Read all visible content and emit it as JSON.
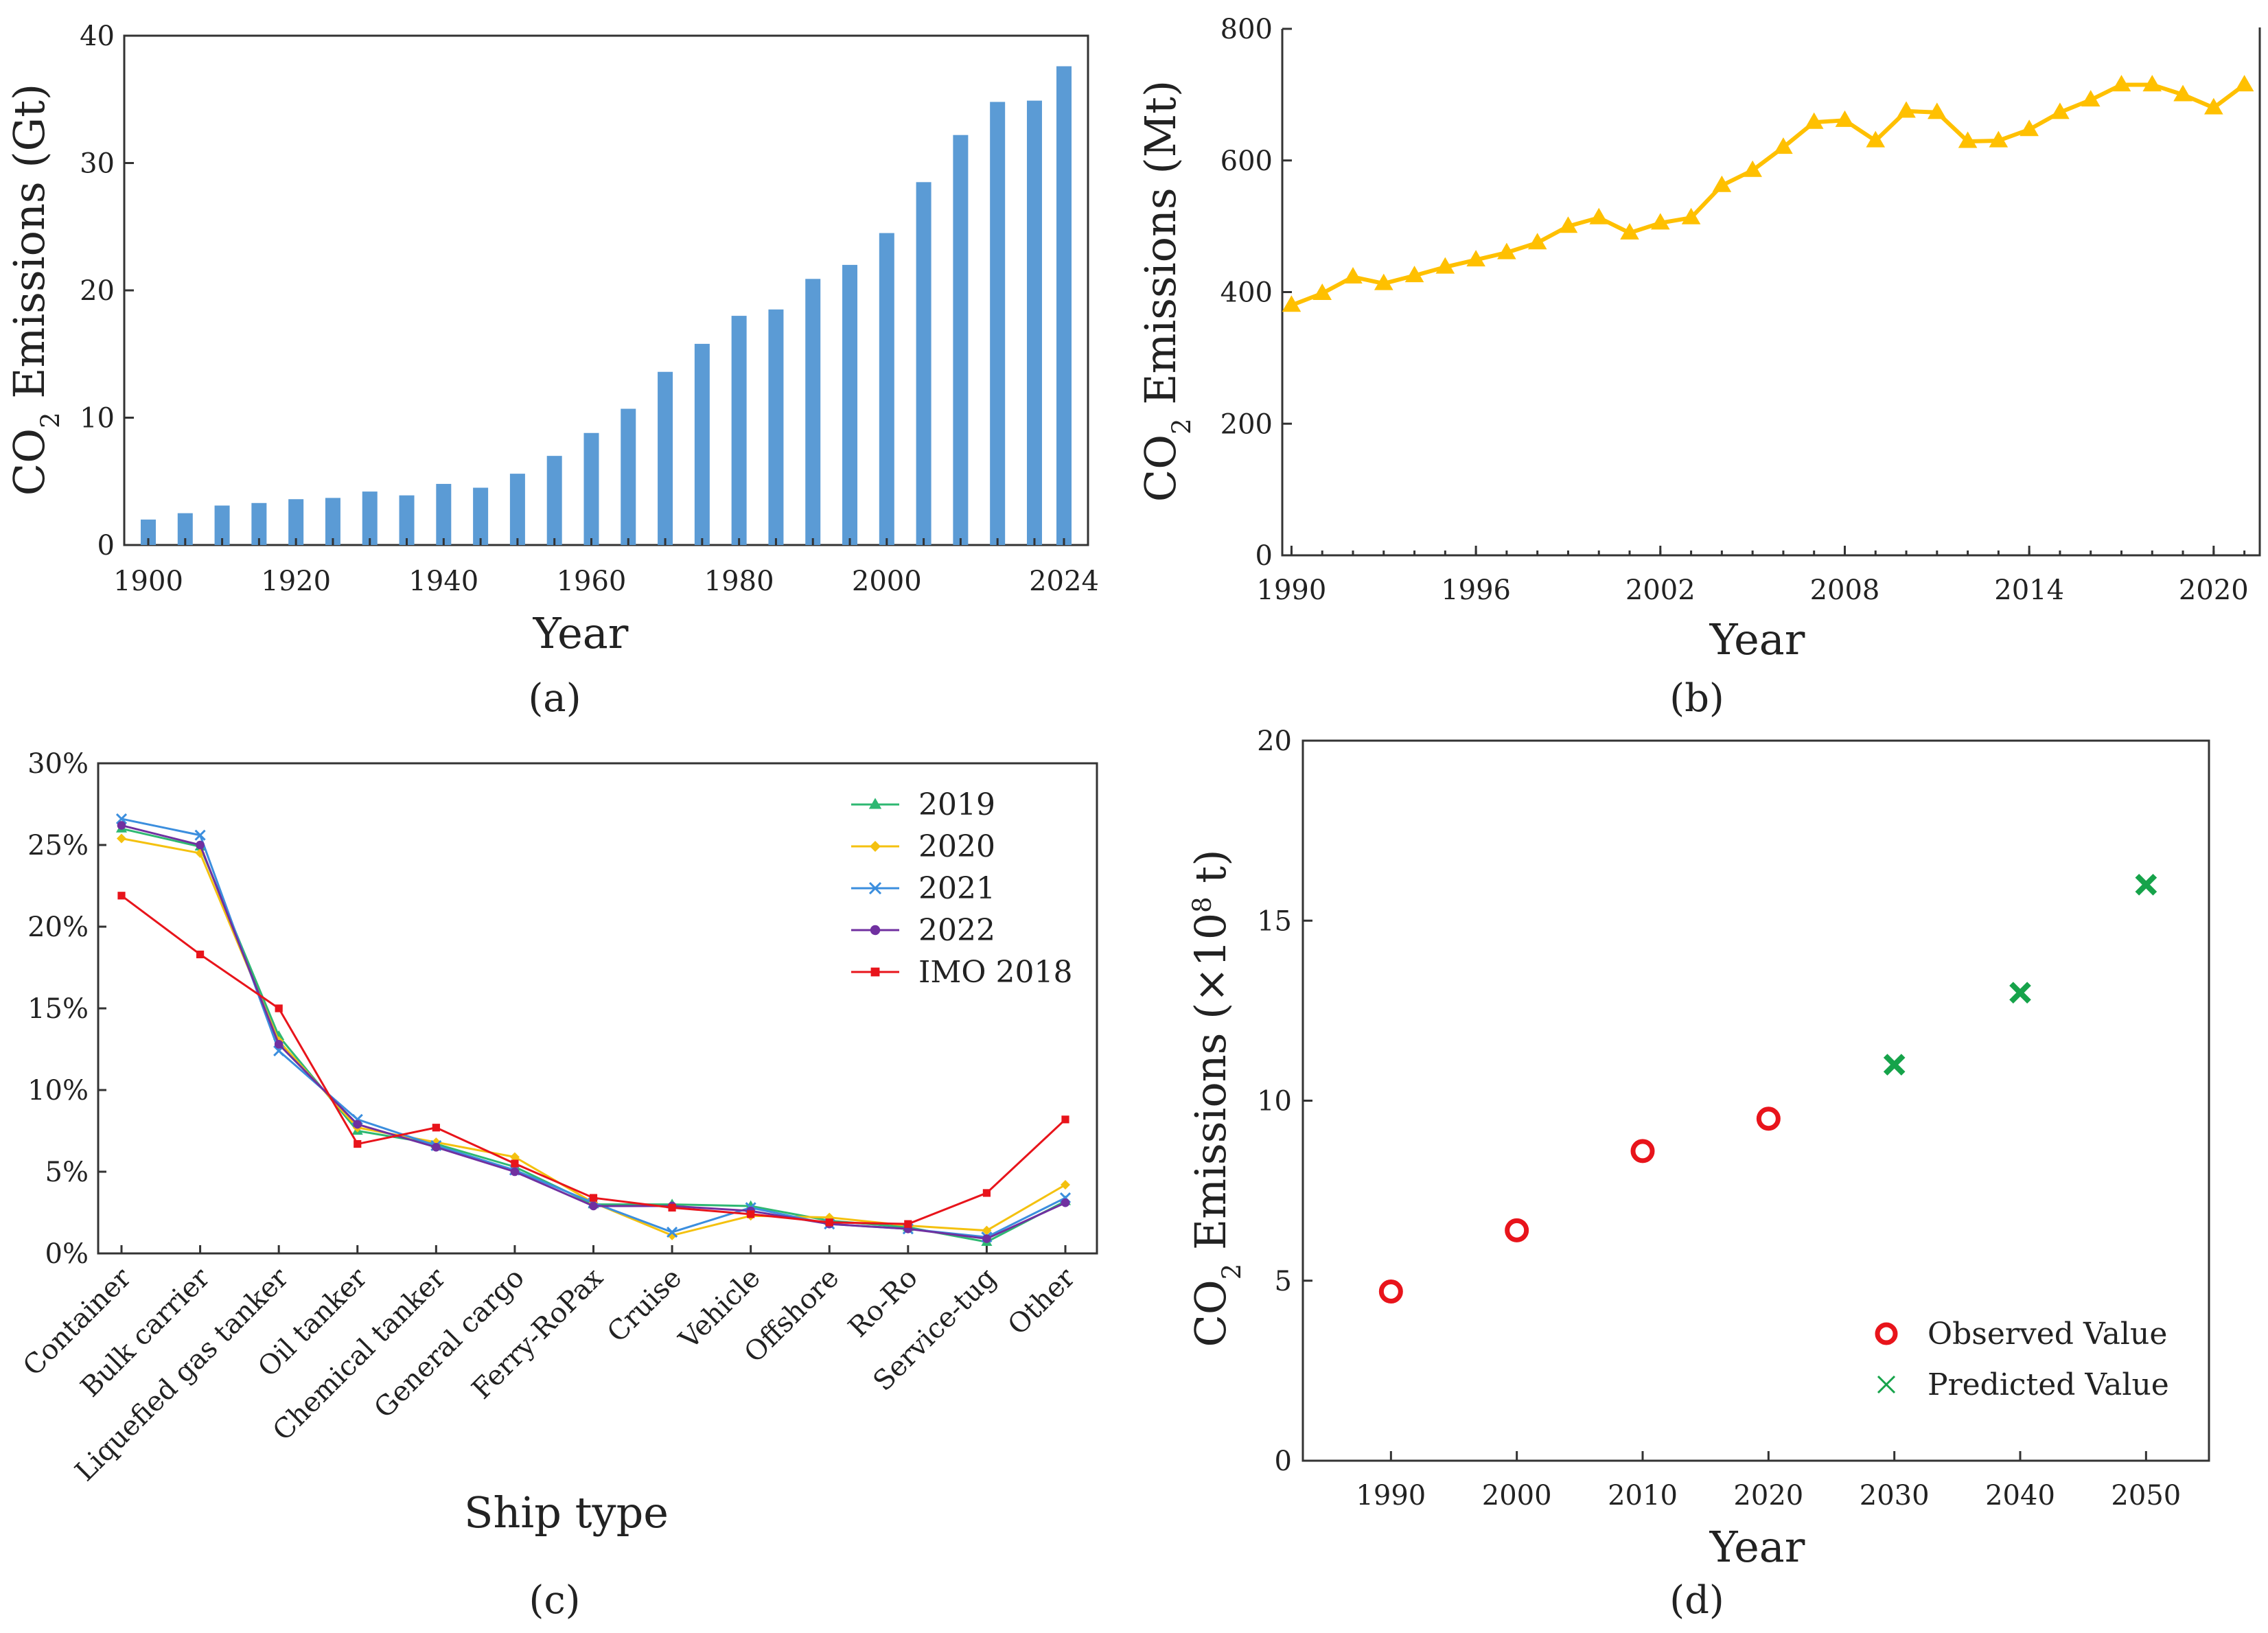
{
  "chart_data": [
    {
      "type": "bar",
      "panel_label": "a",
      "title": "",
      "xlabel": "Year",
      "ylabel": "CO2 Emissions (Gt)",
      "ylabel_parts": {
        "pre": "CO",
        "sub": "2",
        "post": " Emissions (Gt)"
      },
      "ylim": [
        0,
        40
      ],
      "yticks": [
        0,
        10,
        20,
        30,
        40
      ],
      "xtick_labels": [
        "1900",
        "1920",
        "1940",
        "1960",
        "1980",
        "2000",
        "2024"
      ],
      "categories": [
        "1900",
        "1905",
        "1910",
        "1915",
        "1920",
        "1925",
        "1930",
        "1935",
        "1940",
        "1945",
        "1950",
        "1955",
        "1960",
        "1965",
        "1970",
        "1975",
        "1980",
        "1985",
        "1990",
        "1995",
        "2000",
        "2005",
        "2010",
        "2015",
        "2020",
        "2024"
      ],
      "values": [
        2.0,
        2.5,
        3.1,
        3.3,
        3.6,
        3.7,
        4.2,
        3.9,
        4.8,
        4.5,
        5.6,
        7.0,
        8.8,
        10.7,
        13.6,
        15.8,
        18.0,
        18.5,
        20.9,
        22.0,
        24.5,
        28.5,
        32.2,
        34.8,
        34.9,
        37.6
      ],
      "color": "#5b9bd5"
    },
    {
      "type": "line",
      "panel_label": "b",
      "title": "",
      "xlabel": "Year",
      "ylabel": "CO2 Emissions (Mt)",
      "ylabel_parts": {
        "pre": "CO",
        "sub": "2",
        "post": " Emissions (Mt)"
      },
      "xlim": [
        1989.7,
        2021.5
      ],
      "ylim": [
        0,
        800
      ],
      "yticks": [
        0,
        200,
        400,
        600,
        800
      ],
      "xticks": [
        1990,
        1996,
        2002,
        2008,
        2014,
        2020
      ],
      "x": [
        1990,
        1991,
        1992,
        1993,
        1994,
        1995,
        1996,
        1997,
        1998,
        1999,
        2000,
        2001,
        2002,
        2003,
        2004,
        2005,
        2006,
        2007,
        2008,
        2009,
        2010,
        2011,
        2012,
        2013,
        2014,
        2015,
        2016,
        2017,
        2018,
        2019,
        2020,
        2021
      ],
      "y": [
        380,
        398,
        423,
        413,
        425,
        438,
        449,
        460,
        475,
        500,
        513,
        490,
        505,
        513,
        562,
        585,
        620,
        658,
        661,
        630,
        675,
        673,
        629,
        630,
        647,
        673,
        692,
        715,
        715,
        700,
        680,
        715
      ],
      "color": "#ffc000",
      "marker": "triangle"
    },
    {
      "type": "line",
      "panel_label": "c",
      "title": "",
      "xlabel": "Ship type",
      "ylabel": "",
      "ylim": [
        0,
        30
      ],
      "yticks": [
        0,
        5,
        10,
        15,
        20,
        25,
        30
      ],
      "ytick_suffix": "%",
      "categories": [
        "Container",
        "Bulk carrier",
        "Liquefied gas tanker",
        "Oil tanker",
        "Chemical tanker",
        "General cargo",
        "Ferry-RoPax",
        "Cruise",
        "Vehicle",
        "Offshore",
        "Ro-Ro",
        "Service-tug",
        "Other"
      ],
      "legend_position": "top-right",
      "series": [
        {
          "name": "2019",
          "color": "#2eb872",
          "marker": "triangle",
          "values": [
            26.0,
            24.9,
            13.3,
            7.5,
            6.7,
            5.3,
            3.0,
            3.0,
            2.9,
            2.0,
            1.6,
            0.7,
            3.2
          ]
        },
        {
          "name": "2020",
          "color": "#f4c10f",
          "marker": "diamond",
          "values": [
            25.4,
            24.5,
            13.0,
            7.7,
            6.8,
            5.9,
            3.1,
            1.1,
            2.3,
            2.2,
            1.7,
            1.4,
            4.2
          ]
        },
        {
          "name": "2021",
          "color": "#3b8ede",
          "marker": "x",
          "values": [
            26.6,
            25.6,
            12.4,
            8.2,
            6.6,
            5.1,
            3.1,
            1.3,
            2.8,
            1.8,
            1.5,
            1.0,
            3.4
          ]
        },
        {
          "name": "2022",
          "color": "#7030a0",
          "marker": "circle",
          "values": [
            26.2,
            25.0,
            12.8,
            7.9,
            6.5,
            5.0,
            2.9,
            2.9,
            2.6,
            1.8,
            1.5,
            0.9,
            3.1
          ]
        },
        {
          "name": "IMO 2018",
          "color": "#e8141b",
          "marker": "square",
          "values": [
            21.9,
            18.3,
            15.0,
            6.7,
            7.7,
            5.5,
            3.4,
            2.8,
            2.4,
            1.9,
            1.8,
            3.7,
            8.2
          ]
        }
      ]
    },
    {
      "type": "scatter",
      "panel_label": "d",
      "title": "",
      "xlabel": "Year",
      "ylabel": "CO2 Emissions (×10^8 t)",
      "ylabel_parts": {
        "pre": "CO",
        "sub": "2",
        "mid": " Emissions (×10",
        "sup": "8",
        "post": " t)"
      },
      "xlim": [
        1983,
        2055
      ],
      "ylim": [
        0,
        20
      ],
      "yticks": [
        0,
        5,
        10,
        15,
        20
      ],
      "xticks": [
        1990,
        2000,
        2010,
        2020,
        2030,
        2040,
        2050
      ],
      "legend_position": "bottom-right",
      "series": [
        {
          "name": "Observed Value",
          "color": "#e8141b",
          "marker": "circle-open",
          "x": [
            1990,
            2000,
            2010,
            2020
          ],
          "y": [
            4.7,
            6.4,
            8.6,
            9.5
          ]
        },
        {
          "name": "Predicted Value",
          "color": "#16a34a",
          "marker": "x",
          "x": [
            2030,
            2040,
            2050
          ],
          "y": [
            11.0,
            13.0,
            16.0
          ]
        }
      ]
    }
  ]
}
